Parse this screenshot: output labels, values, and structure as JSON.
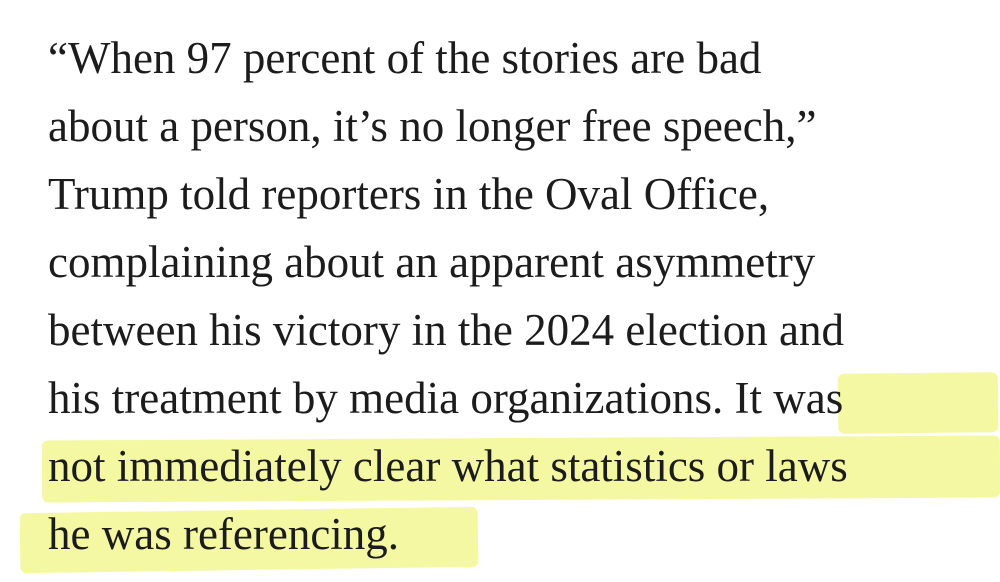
{
  "article": {
    "lines": [
      {
        "text": "“When 97 percent of the stories are bad"
      },
      {
        "text": "about a person, it’s no longer free speech,”"
      },
      {
        "text": "Trump told reporters in the Oval Office,"
      },
      {
        "text": "complaining about an apparent asymmetry"
      },
      {
        "text": "between his victory in the 2024 election and"
      },
      {
        "text": "his treatment by media organizations. ",
        "highlight": "It was"
      },
      {
        "text": "",
        "highlight": "not immediately clear what statistics or laws"
      },
      {
        "text": "",
        "highlight": "he was referencing."
      }
    ],
    "highlight_color": "#f4f79a"
  }
}
